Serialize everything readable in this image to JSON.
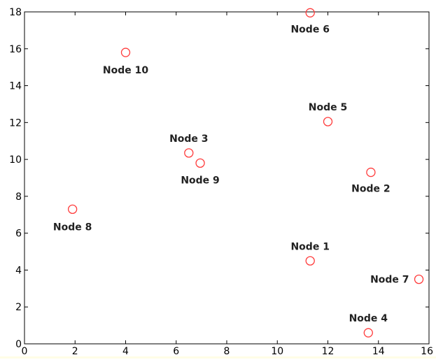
{
  "chart_data": {
    "type": "scatter",
    "title": "",
    "xlabel": "",
    "ylabel": "",
    "xlim": [
      0,
      16
    ],
    "ylim": [
      0,
      18
    ],
    "xticks": [
      0,
      2,
      4,
      6,
      8,
      10,
      12,
      14,
      16
    ],
    "yticks": [
      0,
      2,
      4,
      6,
      8,
      10,
      12,
      14,
      16,
      18
    ],
    "grid": false,
    "marker": "open-circle",
    "marker_color": "#ff3b3b",
    "points": [
      {
        "label": "Node 1",
        "x": 11.3,
        "y": 4.5
      },
      {
        "label": "Node 2",
        "x": 13.7,
        "y": 9.3
      },
      {
        "label": "Node 3",
        "x": 6.5,
        "y": 10.35
      },
      {
        "label": "Node 4",
        "x": 13.6,
        "y": 0.6
      },
      {
        "label": "Node 5",
        "x": 12.0,
        "y": 12.05
      },
      {
        "label": "Node 6",
        "x": 11.3,
        "y": 17.95
      },
      {
        "label": "Node 7",
        "x": 15.6,
        "y": 3.5
      },
      {
        "label": "Node 8",
        "x": 1.9,
        "y": 7.3
      },
      {
        "label": "Node 9",
        "x": 6.95,
        "y": 9.8
      },
      {
        "label": "Node 10",
        "x": 4.0,
        "y": 15.8
      }
    ]
  }
}
